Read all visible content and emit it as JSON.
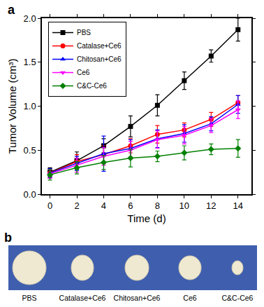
{
  "chart_data": {
    "type": "line",
    "panel_label": "a",
    "x_label": "Time (d)",
    "y_label": "Tumor Volume (cm³)",
    "x": [
      0,
      2,
      4,
      6,
      8,
      10,
      12,
      14
    ],
    "xlim": [
      -0.6,
      15
    ],
    "xticks": [
      0,
      2,
      4,
      6,
      8,
      10,
      12,
      14
    ],
    "ylim": [
      0,
      2
    ],
    "yticks": [
      {
        "value": 0,
        "label": "0.0"
      },
      0.5,
      {
        "value": 1,
        "label": "1.0"
      },
      1.5,
      {
        "value": 2,
        "label": "2.0"
      }
    ],
    "grid": false,
    "legend": "top-left",
    "series": [
      {
        "name": "PBS",
        "color": "#000000",
        "marker": "square",
        "line_style": "solid",
        "values": [
          0.25,
          0.38,
          0.55,
          0.77,
          1.01,
          1.29,
          1.57,
          1.87
        ],
        "error": [
          0.05,
          0.1,
          0.08,
          0.12,
          0.12,
          0.1,
          0.07,
          0.13
        ]
      },
      {
        "name": "Catalase+Ce6",
        "color": "#ff0000",
        "marker": "circle",
        "line_style": "solid",
        "values": [
          0.24,
          0.37,
          0.45,
          0.55,
          0.68,
          0.73,
          0.85,
          1.04
        ],
        "error": [
          0.05,
          0.08,
          0.1,
          0.08,
          0.1,
          0.08,
          0.08,
          0.08
        ]
      },
      {
        "name": "Chitosan+Ce6",
        "color": "#0000ff",
        "marker": "triangle-up",
        "line_style": "solid",
        "values": [
          0.24,
          0.35,
          0.46,
          0.52,
          0.63,
          0.69,
          0.8,
          1.02
        ],
        "error": [
          0.05,
          0.08,
          0.2,
          0.1,
          0.1,
          0.1,
          0.08,
          0.1
        ]
      },
      {
        "name": "Ce6",
        "color": "#ff00ff",
        "marker": "triangle-down",
        "line_style": "solid",
        "values": [
          0.23,
          0.33,
          0.43,
          0.5,
          0.62,
          0.67,
          0.78,
          0.96
        ],
        "error": [
          0.05,
          0.08,
          0.1,
          0.1,
          0.1,
          0.1,
          0.08,
          0.1
        ]
      },
      {
        "name": "C&C-Ce6",
        "color": "#008000",
        "marker": "diamond",
        "line_style": "solid",
        "values": [
          0.22,
          0.3,
          0.36,
          0.41,
          0.43,
          0.47,
          0.51,
          0.52
        ],
        "error": [
          0.06,
          0.07,
          0.08,
          0.1,
          0.06,
          0.08,
          0.06,
          0.1
        ]
      }
    ]
  },
  "photo_panel": {
    "panel_label": "b",
    "labels": [
      "PBS",
      "Catalase+Ce6",
      "Chitosan+Ce6",
      "Ce6",
      "C&C-Ce6"
    ]
  }
}
